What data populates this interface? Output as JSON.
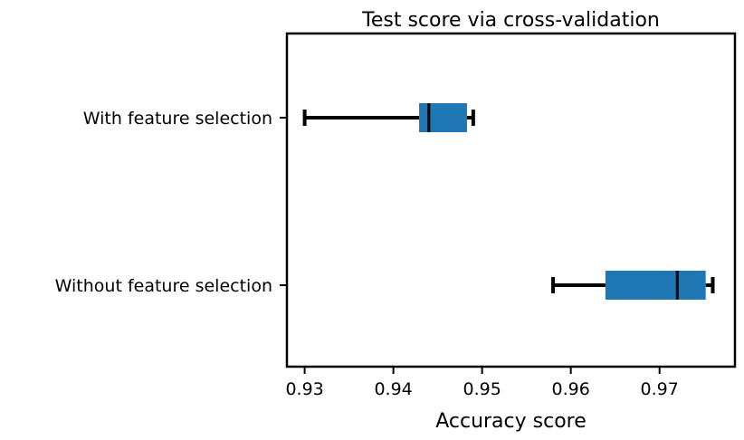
{
  "chart_data": {
    "type": "boxplot",
    "orientation": "horizontal",
    "title": "Test score via cross-validation",
    "xlabel": "Accuracy score",
    "ylabel": "",
    "xlim": [
      0.928,
      0.9785
    ],
    "xticks": [
      0.93,
      0.94,
      0.95,
      0.96,
      0.97
    ],
    "xtick_labels": [
      "0.93",
      "0.94",
      "0.95",
      "0.96",
      "0.97"
    ],
    "grid": false,
    "box_color": "#1f77b4",
    "line_color": "#000000",
    "categories": [
      "With feature selection",
      "Without feature selection"
    ],
    "boxes": [
      {
        "label": "With feature selection",
        "whisker_low": 0.93,
        "q1": 0.9429,
        "median": 0.944,
        "q3": 0.9483,
        "whisker_high": 0.949
      },
      {
        "label": "Without feature selection",
        "whisker_low": 0.958,
        "q1": 0.9639,
        "median": 0.972,
        "q3": 0.9752,
        "whisker_high": 0.976
      }
    ]
  }
}
